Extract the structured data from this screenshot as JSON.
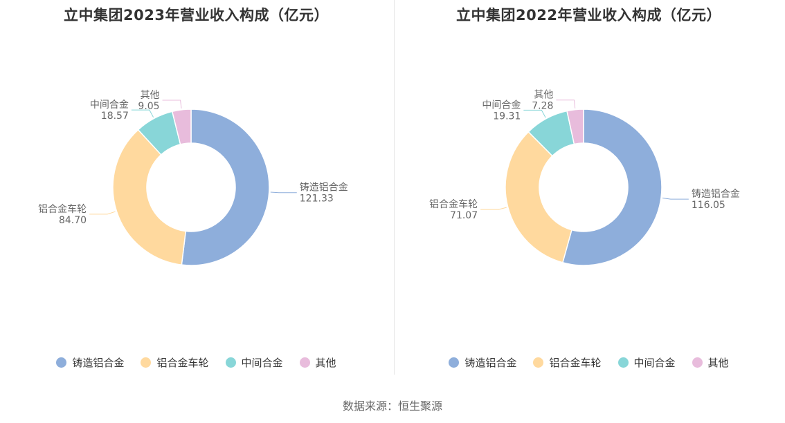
{
  "source_label": "数据来源：恒生聚源",
  "colors": [
    "#8eaedb",
    "#ffd99e",
    "#88d6d8",
    "#e8bcdc"
  ],
  "chart_data": [
    {
      "type": "pie",
      "title": "立中集团2023年营业收入构成（亿元）",
      "categories": [
        "铸造铝合金",
        "铝合金车轮",
        "中间合金",
        "其他"
      ],
      "values": [
        121.33,
        84.7,
        18.57,
        9.05
      ],
      "value_labels": [
        "121.33",
        "84.70",
        "18.57",
        "9.05"
      ],
      "legend_position": "bottom"
    },
    {
      "type": "pie",
      "title": "立中集团2022年营业收入构成（亿元）",
      "categories": [
        "铸造铝合金",
        "铝合金车轮",
        "中间合金",
        "其他"
      ],
      "values": [
        116.05,
        71.07,
        19.31,
        7.28
      ],
      "value_labels": [
        "116.05",
        "71.07",
        "19.31",
        "7.28"
      ],
      "legend_position": "bottom"
    }
  ]
}
